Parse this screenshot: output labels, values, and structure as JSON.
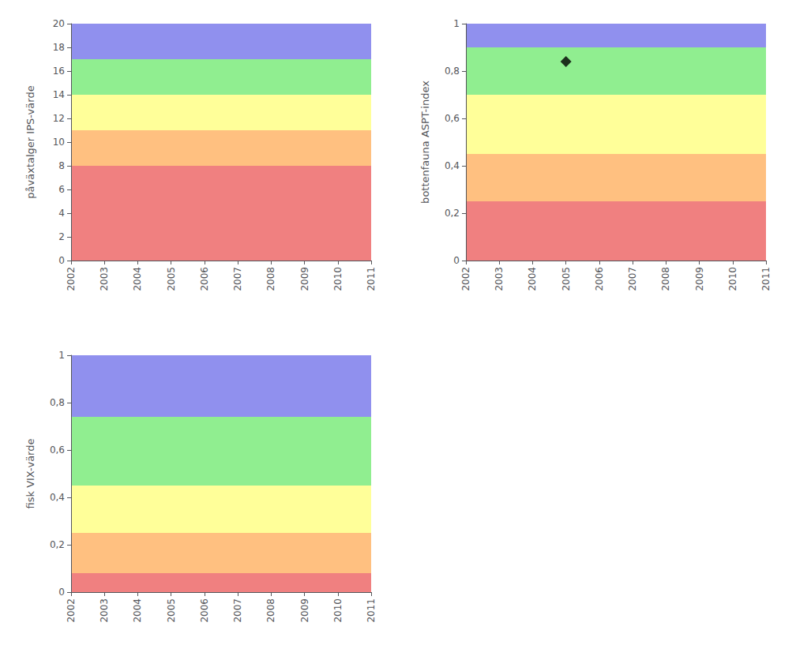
{
  "chart_data": [
    {
      "type": "bands",
      "ylabel": "påväxtalger IPS-värde",
      "xlim": [
        2002,
        2011
      ],
      "ylim": [
        0,
        20
      ],
      "xticks": [
        2002,
        2003,
        2004,
        2005,
        2006,
        2007,
        2008,
        2009,
        2010,
        2011
      ],
      "yticks": [
        0,
        2,
        4,
        6,
        8,
        10,
        12,
        14,
        16,
        18,
        20
      ],
      "grid": false,
      "bands": [
        {
          "ymin": 0,
          "ymax": 8,
          "color": "#F08080"
        },
        {
          "ymin": 8,
          "ymax": 11,
          "color": "#FFC080"
        },
        {
          "ymin": 11,
          "ymax": 14,
          "color": "#FFFF99"
        },
        {
          "ymin": 14,
          "ymax": 17,
          "color": "#90EE90"
        },
        {
          "ymin": 17,
          "ymax": 20,
          "color": "#9090EE"
        }
      ]
    },
    {
      "type": "scatter",
      "ylabel": "bottenfauna ASPT-index",
      "xlim": [
        2002,
        2011
      ],
      "ylim": [
        0,
        1
      ],
      "xticks": [
        2002,
        2003,
        2004,
        2005,
        2006,
        2007,
        2008,
        2009,
        2010,
        2011
      ],
      "yticks": [
        0,
        {
          "value": 0.2,
          "label": "0,2"
        },
        {
          "value": 0.4,
          "label": "0,4"
        },
        {
          "value": 0.6,
          "label": "0,6"
        },
        {
          "value": 0.8,
          "label": "0,8"
        },
        1
      ],
      "grid": false,
      "bands": [
        {
          "ymin": 0,
          "ymax": 0.25,
          "color": "#F08080"
        },
        {
          "ymin": 0.25,
          "ymax": 0.45,
          "color": "#FFC080"
        },
        {
          "ymin": 0.45,
          "ymax": 0.7,
          "color": "#FFFF99"
        },
        {
          "ymin": 0.7,
          "ymax": 0.9,
          "color": "#90EE90"
        },
        {
          "ymin": 0.9,
          "ymax": 1.0,
          "color": "#9090EE"
        }
      ],
      "x": [
        2005
      ],
      "values": [
        0.84
      ],
      "color": "black",
      "marker": "diamond"
    },
    {
      "type": "bands",
      "ylabel": "fisk VIX-värde",
      "xlim": [
        2002,
        2011
      ],
      "ylim": [
        0,
        1
      ],
      "xticks": [
        2002,
        2003,
        2004,
        2005,
        2006,
        2007,
        2008,
        2009,
        2010,
        2011
      ],
      "yticks": [
        0,
        {
          "value": 0.2,
          "label": "0,2"
        },
        {
          "value": 0.4,
          "label": "0,4"
        },
        {
          "value": 0.6,
          "label": "0,6"
        },
        {
          "value": 0.8,
          "label": "0,8"
        },
        1
      ],
      "grid": false,
      "bands": [
        {
          "ymin": 0,
          "ymax": 0.08,
          "color": "#F08080"
        },
        {
          "ymin": 0.08,
          "ymax": 0.25,
          "color": "#FFC080"
        },
        {
          "ymin": 0.25,
          "ymax": 0.45,
          "color": "#FFFF99"
        },
        {
          "ymin": 0.45,
          "ymax": 0.74,
          "color": "#90EE90"
        },
        {
          "ymin": 0.74,
          "ymax": 1.0,
          "color": "#9090EE"
        }
      ]
    }
  ]
}
